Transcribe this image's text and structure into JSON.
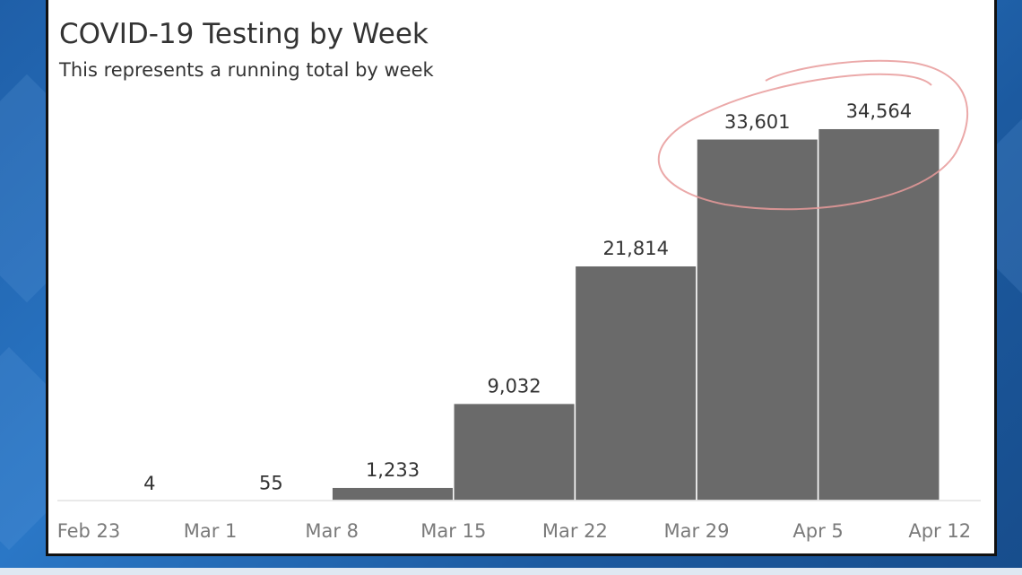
{
  "chart_data": {
    "type": "bar",
    "title": "COVID-19 Testing by Week",
    "subtitle": "This represents a running total by week",
    "xlabel": "",
    "ylabel": "",
    "ylim": [
      0,
      40000
    ],
    "x_ticks": [
      "Feb 23",
      "Mar 1",
      "Mar 8",
      "Mar 15",
      "Mar 22",
      "Mar 29",
      "Apr 5",
      "Apr 12"
    ],
    "categories": [
      "Feb 23",
      "Mar 1",
      "Mar 8",
      "Mar 15",
      "Mar 22",
      "Mar 29",
      "Apr 5"
    ],
    "values": [
      4,
      55,
      1233,
      9032,
      21814,
      33601,
      34564
    ],
    "value_labels": [
      "4",
      "55",
      "1,233",
      "9,032",
      "21,814",
      "33,601",
      "34,564"
    ],
    "bar_color": "#6a6a6a",
    "annotation_color": "#e89a9a",
    "grid": false,
    "legend": "none"
  }
}
